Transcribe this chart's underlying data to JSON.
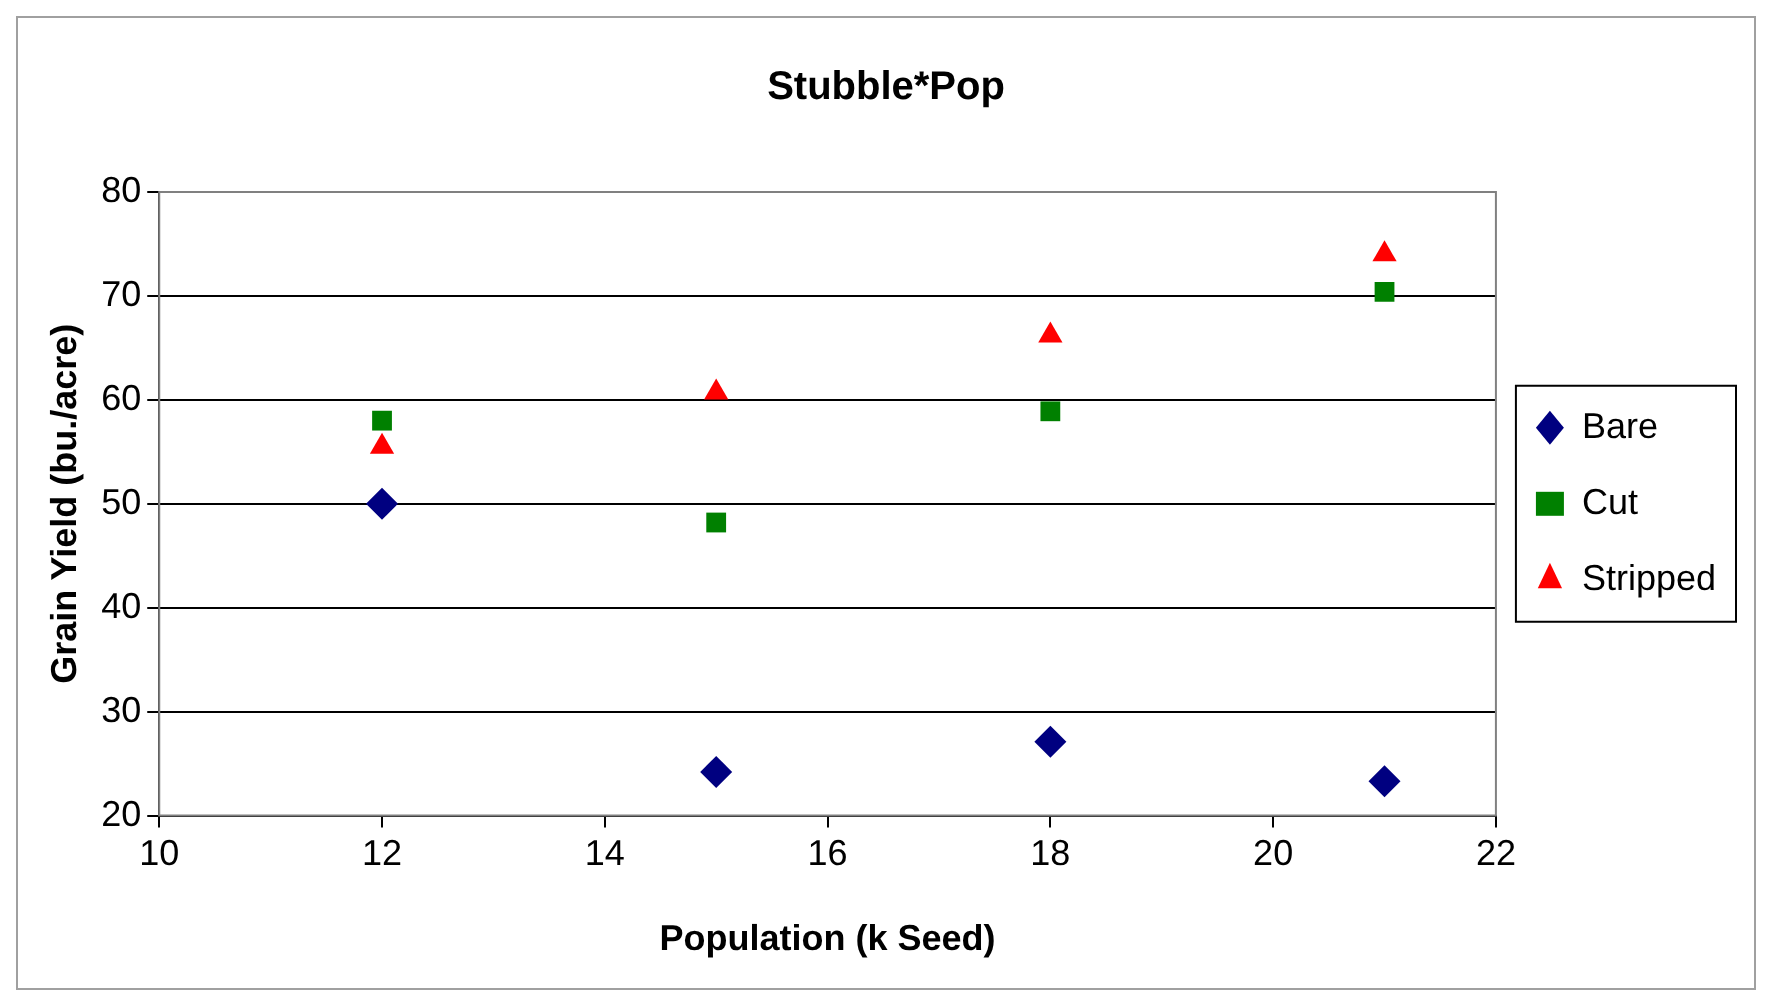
{
  "chart_data": {
    "type": "scatter",
    "title": "Stubble*Pop",
    "xlabel": "Population (k Seed)",
    "ylabel": "Grain Yield (bu./acre)",
    "xlim": [
      10,
      22
    ],
    "xticks": [
      10,
      12,
      14,
      16,
      18,
      20,
      22
    ],
    "ylim": [
      20,
      80
    ],
    "yticks": [
      20,
      30,
      40,
      50,
      60,
      70,
      80
    ],
    "grid": "y",
    "legend": "right",
    "series": [
      {
        "name": "Bare",
        "color": "#000080",
        "marker": "diamond",
        "x": [
          12,
          15,
          18,
          21
        ],
        "values": [
          50,
          24.2,
          27.1,
          23.3
        ]
      },
      {
        "name": "Cut",
        "color": "#008000",
        "marker": "square",
        "x": [
          12,
          15,
          18,
          21
        ],
        "values": [
          58,
          48.2,
          58.9,
          70.4
        ]
      },
      {
        "name": "Stripped",
        "color": "#ff0000",
        "marker": "triangle",
        "x": [
          12,
          15,
          18,
          21
        ],
        "values": [
          55.5,
          60.7,
          66.2,
          74
        ]
      }
    ]
  }
}
